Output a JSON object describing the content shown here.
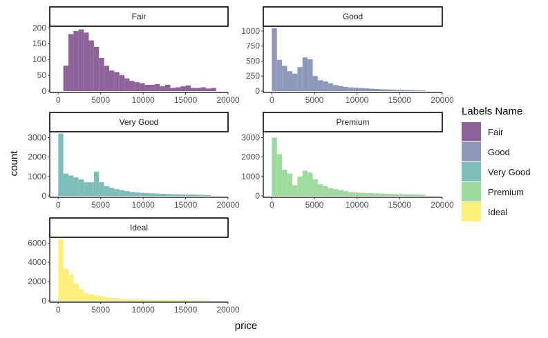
{
  "chart_data": {
    "type": "bar",
    "subtype": "faceted-histogram",
    "xlabel": "price",
    "ylabel": "count",
    "x_ticks": [
      0,
      5000,
      10000,
      15000,
      20000
    ],
    "xlim": [
      -1000,
      20000
    ],
    "bin_width": 600,
    "bin_start": 300,
    "legend": {
      "title": "Labels Name",
      "position": "right",
      "entries": [
        {
          "label": "Fair",
          "color": "#8E6399"
        },
        {
          "label": "Good",
          "color": "#8C99BA"
        },
        {
          "label": "Very Good",
          "color": "#7DBDBA"
        },
        {
          "label": "Premium",
          "color": "#9EDB9E"
        },
        {
          "label": "Ideal",
          "color": "#FFEE78"
        }
      ]
    },
    "panels": [
      {
        "title": "Fair",
        "color": "#8E6399",
        "y_ticks": [
          0,
          50,
          100,
          150,
          200
        ],
        "ylim": [
          0,
          205
        ],
        "values": [
          0,
          80,
          180,
          190,
          195,
          185,
          160,
          140,
          105,
          80,
          65,
          60,
          50,
          40,
          32,
          28,
          25,
          20,
          20,
          22,
          15,
          20,
          10,
          12,
          15,
          18,
          10,
          10,
          12,
          8,
          10
        ]
      },
      {
        "title": "Good",
        "color": "#8C99BA",
        "y_ticks": [
          0,
          250,
          500,
          750,
          1000
        ],
        "ylim": [
          0,
          1080
        ],
        "values": [
          1050,
          520,
          420,
          330,
          290,
          400,
          560,
          530,
          250,
          180,
          160,
          130,
          100,
          80,
          70,
          60,
          55,
          50,
          45,
          40,
          35,
          30,
          28,
          25,
          22,
          20,
          18,
          15,
          12,
          10
        ]
      },
      {
        "title": "Very Good",
        "color": "#7DBDBA",
        "y_ticks": [
          0,
          1000,
          2000,
          3000
        ],
        "ylim": [
          0,
          3300
        ],
        "values": [
          3200,
          1150,
          1050,
          950,
          850,
          700,
          700,
          1250,
          700,
          500,
          420,
          350,
          300,
          250,
          200,
          180,
          160,
          150,
          130,
          120,
          110,
          100,
          90,
          85,
          80,
          75,
          70,
          60,
          50,
          40
        ]
      },
      {
        "title": "Premium",
        "color": "#9EDB9E",
        "y_ticks": [
          0,
          1000,
          2000,
          3000
        ],
        "ylim": [
          0,
          3300
        ],
        "values": [
          3000,
          2150,
          1350,
          1150,
          550,
          1000,
          1300,
          1200,
          850,
          600,
          500,
          400,
          350,
          300,
          250,
          200,
          180,
          160,
          150,
          140,
          130,
          120,
          110,
          100,
          95,
          90,
          85,
          80,
          70,
          60
        ]
      },
      {
        "title": "Ideal",
        "color": "#FFEE78",
        "y_ticks": [
          0,
          2000,
          4000,
          6000
        ],
        "ylim": [
          0,
          6600
        ],
        "values": [
          6400,
          3300,
          2700,
          1800,
          1200,
          800,
          650,
          550,
          450,
          350,
          300,
          250,
          200,
          180,
          160,
          140,
          120,
          110,
          100,
          90,
          85,
          80,
          75,
          70,
          65,
          60,
          55,
          50,
          45,
          40
        ]
      }
    ]
  }
}
